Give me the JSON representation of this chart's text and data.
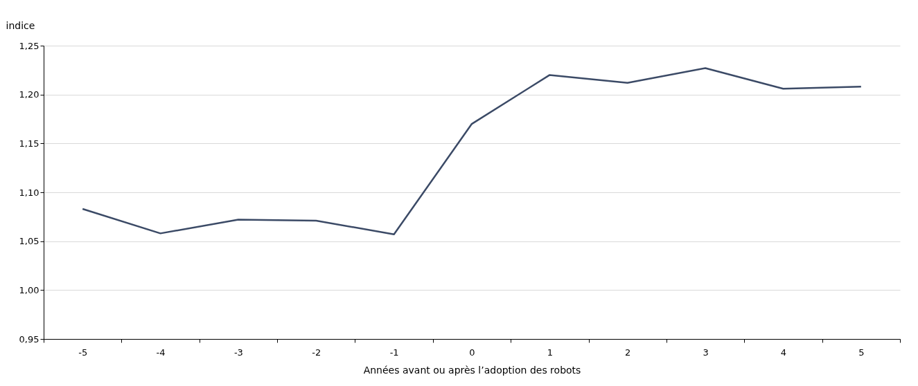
{
  "chart_data": {
    "type": "line",
    "xlabel": "Années avant ou après l’adoption des robots",
    "ylabel": "indice",
    "categories": [
      "-5",
      "-4",
      "-3",
      "-2",
      "-1",
      "0",
      "1",
      "2",
      "3",
      "4",
      "5"
    ],
    "series": [
      {
        "color": "#3b4a66",
        "values": [
          1.083,
          1.058,
          1.072,
          1.071,
          1.057,
          1.17,
          1.22,
          1.212,
          1.227,
          1.206,
          1.208
        ]
      }
    ],
    "ylim": [
      0.95,
      1.25
    ],
    "yticks": [
      {
        "value": 0.95,
        "label": "0,95"
      },
      {
        "value": 1.0,
        "label": "1,00"
      },
      {
        "value": 1.05,
        "label": "1,05"
      },
      {
        "value": 1.1,
        "label": "1,10"
      },
      {
        "value": 1.15,
        "label": "1,15"
      },
      {
        "value": 1.2,
        "label": "1,20"
      },
      {
        "value": 1.25,
        "label": "1,25"
      }
    ],
    "grid": "y",
    "marker": "none",
    "line_style": "solid"
  }
}
